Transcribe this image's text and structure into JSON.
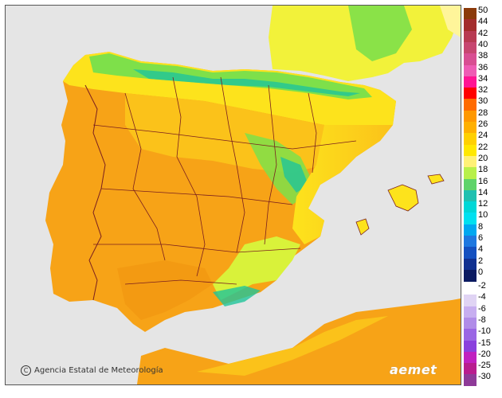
{
  "map": {
    "credit": "Agencia Estatal de Meteorología",
    "brand": "aemet",
    "colors": {
      "sea": "#e5e5e5",
      "hot": "#f7a317",
      "warm_orange": "#fbc21a",
      "yellow": "#fde31c",
      "light_yellow": "#fff59a",
      "green_yellow": "#d9f23a",
      "green": "#7ee04a",
      "teal": "#1fc49a",
      "border": "#7a1f1f"
    }
  },
  "legend": {
    "top_labels": [
      "50",
      "44",
      "42",
      "40",
      "38",
      "36",
      "34",
      "32",
      "30",
      "28",
      "26",
      "24",
      "22",
      "20",
      "18",
      "16",
      "14",
      "12",
      "10",
      "8",
      "6",
      "4",
      "2",
      "0"
    ],
    "top_colors": [
      "#8b3a0a",
      "#a32d2d",
      "#b83a52",
      "#c74670",
      "#d84e92",
      "#ee5cb4",
      "#ff1493",
      "#ff0000",
      "#ff6a00",
      "#ff9800",
      "#ffb000",
      "#ffd000",
      "#ffe800",
      "#fff176",
      "#b8f04a",
      "#5ed36a",
      "#1fc0b0",
      "#00d7d7",
      "#00e0f0",
      "#00a8f0",
      "#1e78e0",
      "#1450c0",
      "#103090",
      "#0a1a60"
    ],
    "bottom_labels": [
      "-2",
      "-4",
      "-6",
      "-8",
      "-10",
      "-15",
      "-20",
      "-25",
      "-30"
    ],
    "bottom_colors": [
      "#ffffff",
      "#e0d4f4",
      "#c7aef0",
      "#b08ce8",
      "#9a66e4",
      "#8a40dd",
      "#c020c0",
      "#b81c8e",
      "#8e3a98"
    ]
  }
}
